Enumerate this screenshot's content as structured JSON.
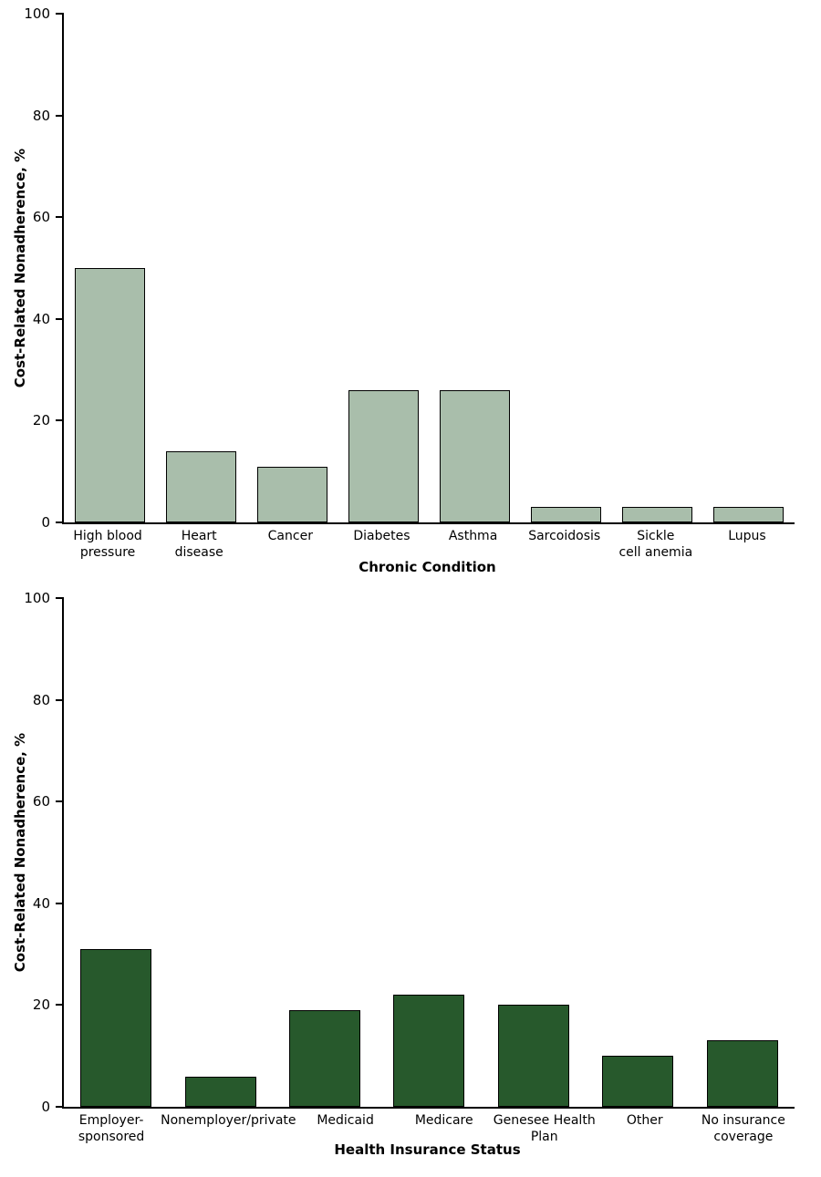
{
  "chart_data": [
    {
      "type": "bar",
      "title": "",
      "ylabel": "Cost-Related Nonadherence, %",
      "xlabel": "Chronic Condition",
      "ylim": [
        0,
        100
      ],
      "yticks": [
        0,
        20,
        40,
        60,
        80,
        100
      ],
      "grid": false,
      "legend": "none",
      "bar_color": "#a9beab",
      "bar_border_color": "#000000",
      "categories": [
        "High blood\npressure",
        "Heart\ndisease",
        "Cancer",
        "Diabetes",
        "Asthma",
        "Sarcoidosis",
        "Sickle\ncell anemia",
        "Lupus"
      ],
      "values": [
        50,
        14,
        11,
        26,
        26,
        3,
        3,
        3
      ]
    },
    {
      "type": "bar",
      "title": "",
      "ylabel": "Cost-Related Nonadherence, %",
      "xlabel": "Health Insurance Status",
      "ylim": [
        0,
        100
      ],
      "yticks": [
        0,
        20,
        40,
        60,
        80,
        100
      ],
      "grid": false,
      "legend": "none",
      "bar_color": "#27592c",
      "bar_border_color": "#000000",
      "categories": [
        "Employer-\nsponsored",
        "Nonemployer/private",
        "Medicaid",
        "Medicare",
        "Genesee Health\nPlan",
        "Other",
        "No insurance\ncoverage"
      ],
      "values": [
        31,
        6,
        19,
        22,
        20,
        10,
        13
      ]
    }
  ]
}
